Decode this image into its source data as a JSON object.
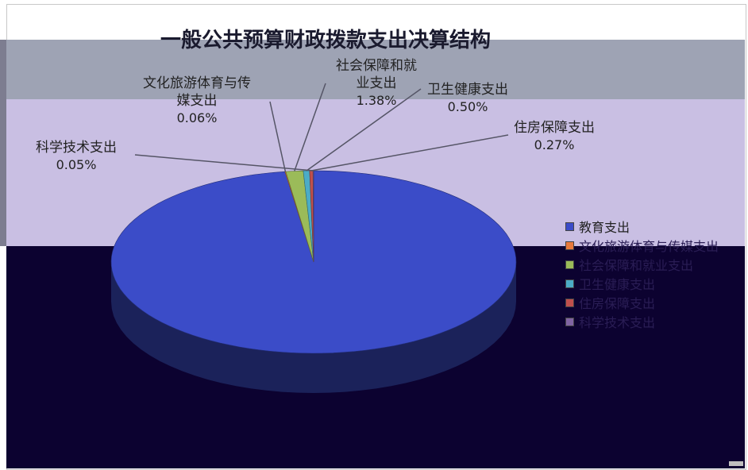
{
  "chart_data": {
    "type": "pie",
    "title": "一般公共预算财政拨款支出决算结构",
    "slices": [
      {
        "label": "教育支出",
        "percent": 97.74,
        "color": "#3b4cc8"
      },
      {
        "label": "文化旅游体育与传媒支出",
        "percent": 0.06,
        "color": "#e87a3c"
      },
      {
        "label": "社会保障和就业支出",
        "percent": 1.38,
        "color": "#9bbb59"
      },
      {
        "label": "卫生健康支出",
        "percent": 0.5,
        "color": "#4bacc6"
      },
      {
        "label": "住房保障支出",
        "percent": 0.27,
        "color": "#c0504d"
      },
      {
        "label": "科学技术支出",
        "percent": 0.05,
        "color": "#8064a2"
      }
    ],
    "data_labels": {
      "culture": {
        "name_line1": "文化旅游体育与传",
        "name_line2": "媒支出",
        "value": "0.06%"
      },
      "social": {
        "name_line1": "社会保障和就",
        "name_line2": "业支出",
        "value": "1.38%"
      },
      "health": {
        "name_line1": "卫生健康支出",
        "value": "0.50%"
      },
      "housing": {
        "name_line1": "住房保障支出",
        "value": "0.27%"
      },
      "science": {
        "name_line1": "科学技术支出",
        "value": "0.05%"
      }
    },
    "legend": {
      "placement": "right",
      "items": [
        "教育支出",
        "文化旅游体育与传媒支出",
        "社会保障和就业支出",
        "卫生健康支出",
        "住房保障支出",
        "科学技术支出"
      ]
    },
    "pie_style": "3d"
  }
}
